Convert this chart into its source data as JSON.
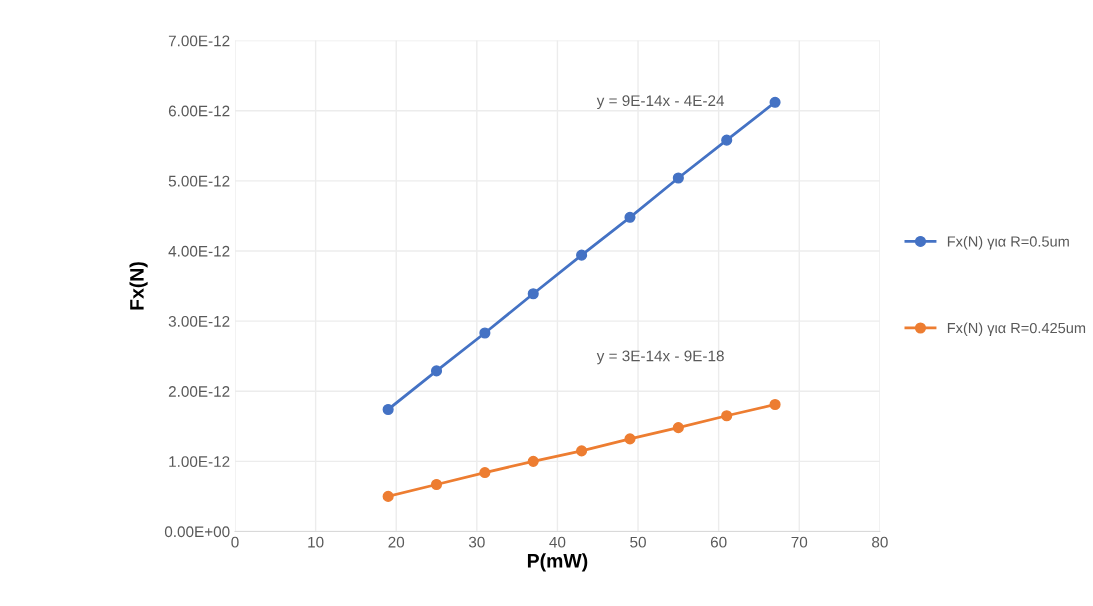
{
  "chart_data": {
    "type": "line",
    "xlabel": "P(mW)",
    "ylabel": "Fx(N)",
    "x": [
      19,
      25,
      31,
      37,
      43,
      49,
      55,
      61,
      67
    ],
    "series": [
      {
        "name": "Fx(N) για R=0.5um",
        "color": "#4472c4",
        "values": [
          1.74e-12,
          2.29e-12,
          2.83e-12,
          3.39e-12,
          3.94e-12,
          4.48e-12,
          5.04e-12,
          5.58e-12,
          6.12e-12
        ]
      },
      {
        "name": "Fx(N) για R=0.425um",
        "color": "#ed7d31",
        "values": [
          5e-13,
          6.7e-13,
          8.4e-13,
          1e-12,
          1.15e-12,
          1.32e-12,
          1.48e-12,
          1.65e-12,
          1.81e-12
        ]
      }
    ],
    "xlim": [
      0,
      80
    ],
    "xticks": [
      0,
      10,
      20,
      30,
      40,
      50,
      60,
      70,
      80
    ],
    "ylim": [
      0,
      7e-12
    ],
    "yticks": [
      {
        "value": 0,
        "label": "0.00E+00"
      },
      {
        "value": 1e-12,
        "label": "1.00E-12"
      },
      {
        "value": 2e-12,
        "label": "2.00E-12"
      },
      {
        "value": 3e-12,
        "label": "3.00E-12"
      },
      {
        "value": 4e-12,
        "label": "4.00E-12"
      },
      {
        "value": 5e-12,
        "label": "5.00E-12"
      },
      {
        "value": 6e-12,
        "label": "6.00E-12"
      },
      {
        "value": 7e-12,
        "label": "7.00E-12"
      }
    ],
    "annotations": [
      "y = 9E-14x - 4E-24",
      "y = 3E-14x - 9E-18"
    ],
    "grid": true,
    "legend": "right",
    "marker": "circle",
    "line_style": "solid"
  }
}
